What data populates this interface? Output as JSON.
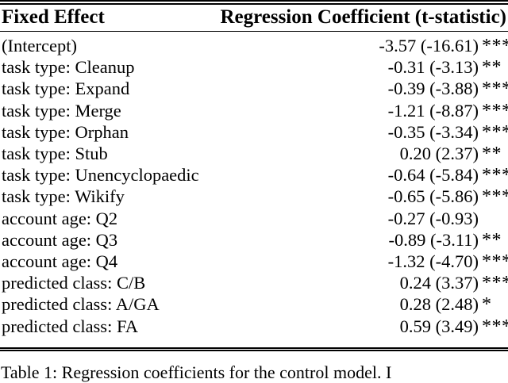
{
  "colors": {
    "background": "#ffffff",
    "text": "#000000",
    "rule": "#000000"
  },
  "table": {
    "header": {
      "col1": "Fixed Effect",
      "col2": "Regression Coefficient (t-statistic)"
    },
    "rows": [
      {
        "label": "(Intercept)",
        "value": "-3.57 (-16.61)",
        "stars": "***"
      },
      {
        "label": "task type: Cleanup",
        "value": "-0.31 (-3.13)",
        "stars": "**"
      },
      {
        "label": "task type: Expand",
        "value": "-0.39 (-3.88)",
        "stars": "***"
      },
      {
        "label": "task type: Merge",
        "value": "-1.21 (-8.87)",
        "stars": "***"
      },
      {
        "label": "task type: Orphan",
        "value": "-0.35 (-3.34)",
        "stars": "***"
      },
      {
        "label": "task type: Stub",
        "value": "0.20 (2.37)",
        "stars": "**"
      },
      {
        "label": "task type: Unencyclopaedic",
        "value": "-0.64 (-5.84)",
        "stars": "***"
      },
      {
        "label": "task type: Wikify",
        "value": "-0.65 (-5.86)",
        "stars": "***"
      },
      {
        "label": "account age: Q2",
        "value": "-0.27 (-0.93)",
        "stars": ""
      },
      {
        "label": "account age: Q3",
        "value": "-0.89 (-3.11)",
        "stars": "**"
      },
      {
        "label": "account age: Q4",
        "value": "-1.32 (-4.70)",
        "stars": "***"
      },
      {
        "label": "predicted class: C/B",
        "value": "0.24 (3.37)",
        "stars": "***"
      },
      {
        "label": "predicted class: A/GA",
        "value": "0.28 (2.48)",
        "stars": "*"
      },
      {
        "label": "predicted class: FA",
        "value": "0.59 (3.49)",
        "stars": "***"
      }
    ]
  },
  "caption": "Table 1: Regression coefficients for the control model. I"
}
